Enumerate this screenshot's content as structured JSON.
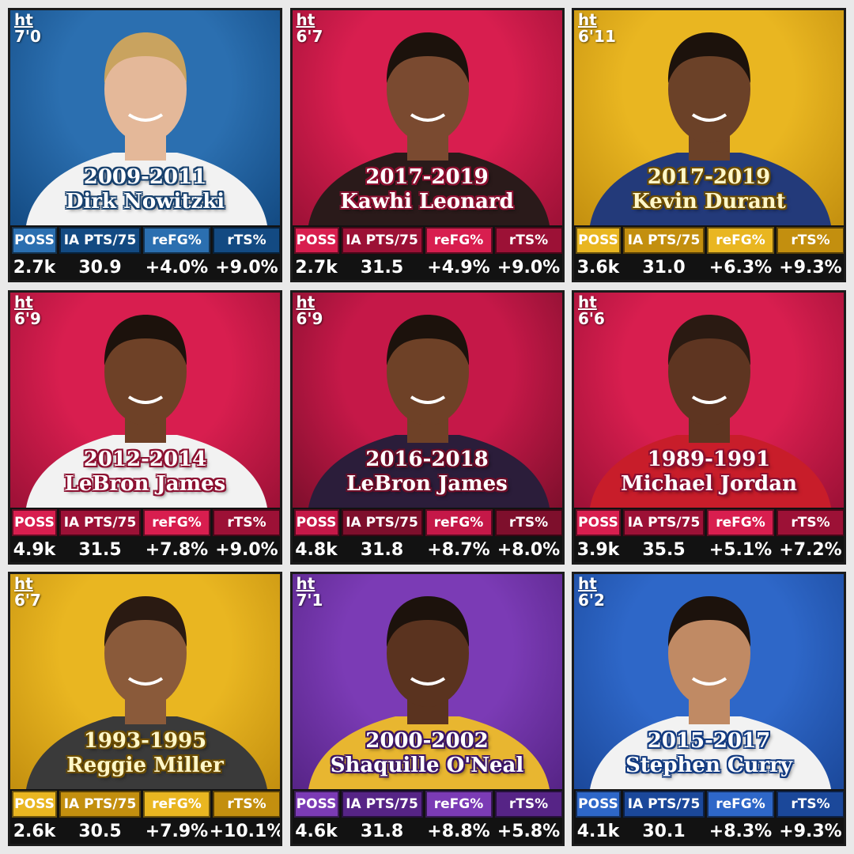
{
  "stat_headers": [
    "POSS",
    "IA PTS/75",
    "reFG%",
    "rTS%"
  ],
  "height_label": "ht",
  "players": [
    {
      "name": "Dirk Nowitzki",
      "years": "2009-2011",
      "height": "7'0",
      "poss": "2.7k",
      "ia_pts75": "30.9",
      "refg": "+4.0%",
      "rts": "+9.0%",
      "theme": "#2b6fb0",
      "theme_dark": "#134a82",
      "text_color": "#ffffff",
      "outline": "#17406d",
      "skin": "#e4b899",
      "hair": "#c9a35f",
      "jersey": "#f2f2f2"
    },
    {
      "name": "Kawhi Leonard",
      "years": "2017-2019",
      "height": "6'7",
      "poss": "2.7k",
      "ia_pts75": "31.5",
      "refg": "+4.9%",
      "rts": "+9.0%",
      "theme": "#d81e4f",
      "theme_dark": "#9c1136",
      "text_color": "#ffffff",
      "outline": "#8c0f30",
      "skin": "#7a4a30",
      "hair": "#1c120c",
      "jersey": "#2a1a1a"
    },
    {
      "name": "Kevin Durant",
      "years": "2017-2019",
      "height": "6'11",
      "poss": "3.6k",
      "ia_pts75": "31.0",
      "refg": "+6.3%",
      "rts": "+9.3%",
      "theme": "#e9b621",
      "theme_dark": "#c38f0f",
      "text_color": "#fff7c9",
      "outline": "#6b4c00",
      "skin": "#6b4128",
      "hair": "#1c120c",
      "jersey": "#233a7a"
    },
    {
      "name": "LeBron James",
      "years": "2012-2014",
      "height": "6'9",
      "poss": "4.9k",
      "ia_pts75": "31.5",
      "refg": "+7.8%",
      "rts": "+9.0%",
      "theme": "#d81e4f",
      "theme_dark": "#9c1136",
      "text_color": "#ffffff",
      "outline": "#8c0f30",
      "skin": "#6e4127",
      "hair": "#1c120c",
      "jersey": "#f2f2f2"
    },
    {
      "name": "LeBron James",
      "years": "2016-2018",
      "height": "6'9",
      "poss": "4.8k",
      "ia_pts75": "31.8",
      "refg": "+8.7%",
      "rts": "+8.0%",
      "theme": "#c51848",
      "theme_dark": "#7e0f2c",
      "text_color": "#ffffff",
      "outline": "#6e0c27",
      "skin": "#6e4127",
      "hair": "#1c120c",
      "jersey": "#2b1d3a"
    },
    {
      "name": "Michael Jordan",
      "years": "1989-1991",
      "height": "6'6",
      "poss": "3.9k",
      "ia_pts75": "35.5",
      "refg": "+5.1%",
      "rts": "+7.2%",
      "theme": "#d81e4f",
      "theme_dark": "#9c1136",
      "text_color": "#ffffff",
      "outline": "#8c0f30",
      "skin": "#5e3521",
      "hair": "#2a1a12",
      "jersey": "#c81d2a"
    },
    {
      "name": "Reggie Miller",
      "years": "1993-1995",
      "height": "6'7",
      "poss": "2.6k",
      "ia_pts75": "30.5",
      "refg": "+7.9%",
      "rts": "+10.1%",
      "theme": "#e9b621",
      "theme_dark": "#c38f0f",
      "text_color": "#fff7c9",
      "outline": "#6b4c00",
      "skin": "#8a5a3a",
      "hair": "#2a1a12",
      "jersey": "#3a3a3a"
    },
    {
      "name": "Shaquille O'Neal",
      "years": "2000-2002",
      "height": "7'1",
      "poss": "4.6k",
      "ia_pts75": "31.8",
      "refg": "+8.8%",
      "rts": "+5.8%",
      "theme": "#7b3bb5",
      "theme_dark": "#562486",
      "text_color": "#ffffff",
      "outline": "#3c1565",
      "skin": "#5a331f",
      "hair": "#1c120c",
      "jersey": "#e8b630"
    },
    {
      "name": "Stephen Curry",
      "years": "2015-2017",
      "height": "6'2",
      "poss": "4.1k",
      "ia_pts75": "30.1",
      "refg": "+8.3%",
      "rts": "+9.3%",
      "theme": "#2e67c8",
      "theme_dark": "#1b489a",
      "text_color": "#ffffff",
      "outline": "#123a80",
      "skin": "#c08a64",
      "hair": "#1c120c",
      "jersey": "#f2f2f2"
    }
  ]
}
